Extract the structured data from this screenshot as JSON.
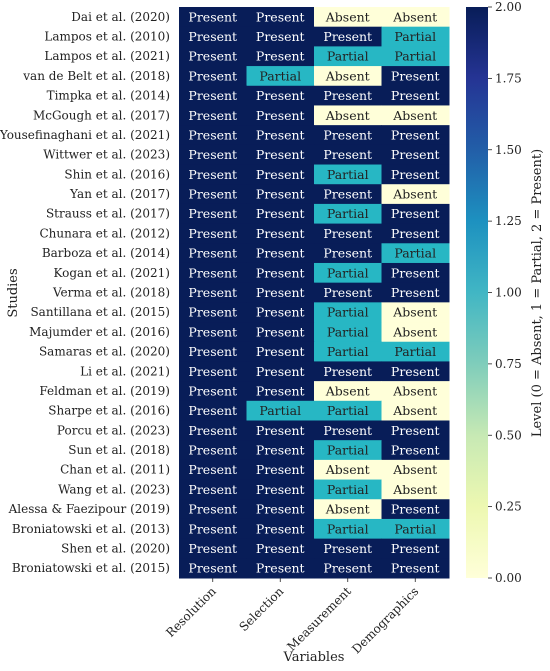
{
  "chart_data": {
    "type": "heatmap",
    "title": "",
    "xlabel": "Variables",
    "ylabel": "Studies",
    "columns": [
      "Resolution",
      "Selection",
      "Measurement",
      "Demographics"
    ],
    "rows": [
      "Dai et al. (2020)",
      "Lampos et al. (2010)",
      "Lampos et al. (2021)",
      "van de Belt et al. (2018)",
      "Timpka et al. (2014)",
      "McGough et al. (2017)",
      "Yousefinaghani et al. (2021)",
      "Wittwer et al. (2023)",
      "Shin et al. (2016)",
      "Yan et al. (2017)",
      "Strauss et al. (2017)",
      "Chunara et al. (2012)",
      "Barboza et al. (2014)",
      "Kogan et al. (2021)",
      "Verma et al. (2018)",
      "Santillana et al. (2015)",
      "Majumder et al. (2016)",
      "Samaras et al. (2020)",
      "Li et al. (2021)",
      "Feldman et al. (2019)",
      "Sharpe et al. (2016)",
      "Porcu et al. (2023)",
      "Sun et al. (2018)",
      "Chan et al. (2011)",
      "Wang et al. (2023)",
      "Alessa & Faezipour (2019)",
      "Broniatowski et al. (2013)",
      "Shen et al. (2020)",
      "Broniatowski et al. (2015)"
    ],
    "values": [
      [
        2,
        2,
        0,
        0
      ],
      [
        2,
        2,
        2,
        1
      ],
      [
        2,
        2,
        1,
        1
      ],
      [
        2,
        1,
        0,
        2
      ],
      [
        2,
        2,
        2,
        2
      ],
      [
        2,
        2,
        0,
        0
      ],
      [
        2,
        2,
        2,
        2
      ],
      [
        2,
        2,
        2,
        2
      ],
      [
        2,
        2,
        1,
        2
      ],
      [
        2,
        2,
        2,
        0
      ],
      [
        2,
        2,
        1,
        2
      ],
      [
        2,
        2,
        2,
        2
      ],
      [
        2,
        2,
        2,
        1
      ],
      [
        2,
        2,
        1,
        2
      ],
      [
        2,
        2,
        2,
        2
      ],
      [
        2,
        2,
        1,
        0
      ],
      [
        2,
        2,
        1,
        0
      ],
      [
        2,
        2,
        1,
        1
      ],
      [
        2,
        2,
        2,
        2
      ],
      [
        2,
        2,
        0,
        0
      ],
      [
        2,
        1,
        1,
        0
      ],
      [
        2,
        2,
        2,
        2
      ],
      [
        2,
        2,
        1,
        2
      ],
      [
        2,
        2,
        0,
        0
      ],
      [
        2,
        2,
        1,
        0
      ],
      [
        2,
        2,
        0,
        2
      ],
      [
        2,
        2,
        1,
        1
      ],
      [
        2,
        2,
        2,
        2
      ],
      [
        2,
        2,
        2,
        2
      ]
    ],
    "value_labels": {
      "0": "Absent",
      "1": "Partial",
      "2": "Present"
    },
    "colorbar": {
      "label": "Level (0 = Absent, 1 = Partial, 2 = Present)",
      "range": [
        0,
        2
      ],
      "ticks": [
        "0.00",
        "0.25",
        "0.50",
        "0.75",
        "1.00",
        "1.25",
        "1.50",
        "1.75",
        "2.00"
      ],
      "colormap": "YlGnBu"
    },
    "colors": {
      "absent": "#ffffd9",
      "partial": "#27b7c4",
      "present": "#081d58",
      "text_dark": "#222222",
      "text_light": "#ffffff"
    }
  }
}
